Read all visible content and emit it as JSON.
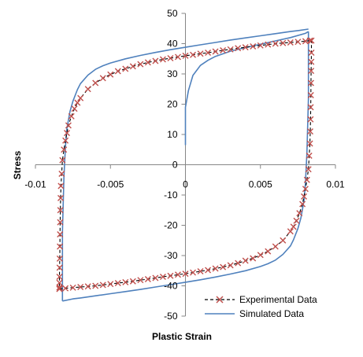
{
  "chart_data": {
    "type": "scatter",
    "title": "",
    "xlabel": "Plastic Strain",
    "ylabel": "Stress",
    "xlim": [
      -0.01,
      0.01
    ],
    "ylim": [
      -50,
      50
    ],
    "x_ticks": [
      -0.01,
      -0.005,
      0,
      0.005,
      0.01
    ],
    "x_tick_labels": [
      "-0.01",
      "-0.005",
      "0",
      "0.005",
      "0.01"
    ],
    "y_ticks": [
      -50,
      -40,
      -30,
      -20,
      -10,
      0,
      10,
      20,
      30,
      40,
      50
    ],
    "y_tick_labels": [
      "-50",
      "-40",
      "-30",
      "-20",
      "-10",
      "0",
      "10",
      "20",
      "30",
      "40",
      "50"
    ],
    "grid": false,
    "legend_position": "bottom-right",
    "series": [
      {
        "name": "Experimental Data",
        "style": "dashed-line-x-markers",
        "color": "#000000",
        "marker_color": "#c0504d",
        "loops": [
          {
            "x": [
              0.0083,
              0.008,
              0.0075,
              0.007,
              0.0065,
              0.006,
              0.0055,
              0.005,
              0.0045,
              0.004,
              0.0035,
              0.003,
              0.0025,
              0.002,
              0.0015,
              0.001,
              0.0005,
              0.0,
              -0.0005,
              -0.001,
              -0.0015,
              -0.002,
              -0.0025,
              -0.003,
              -0.0035,
              -0.004,
              -0.0045,
              -0.005,
              -0.0055,
              -0.006,
              -0.0065,
              -0.007,
              -0.0072,
              -0.0074,
              -0.0076,
              -0.0078,
              -0.0079,
              -0.008,
              -0.0081,
              -0.0082,
              -0.00825,
              -0.0083,
              -0.00832,
              -0.00834,
              -0.00835,
              -0.00836,
              -0.00837,
              -0.00838,
              -0.00839,
              -0.0084,
              -0.0084,
              -0.0084,
              -0.0084
            ],
            "y": [
              41,
              40.8,
              40.6,
              40.4,
              40.2,
              40,
              39.7,
              39.4,
              39.1,
              38.8,
              38.5,
              38.1,
              37.8,
              37.4,
              37,
              36.7,
              36.3,
              36,
              35.6,
              35.2,
              34.8,
              34.3,
              33.8,
              33.2,
              32.5,
              31.7,
              30.9,
              29.8,
              28.6,
              27,
              25,
              22,
              20.5,
              18.5,
              16,
              13,
              10.5,
              8,
              5,
              1.5,
              -3,
              -7,
              -11,
              -15,
              -19,
              -23,
              -27,
              -31,
              -34,
              -37,
              -39,
              -40.5,
              -41
            ]
          },
          {
            "x": [
              -0.0084,
              -0.008,
              -0.0075,
              -0.007,
              -0.0065,
              -0.006,
              -0.0055,
              -0.005,
              -0.0045,
              -0.004,
              -0.0035,
              -0.003,
              -0.0025,
              -0.002,
              -0.0015,
              -0.001,
              -0.0005,
              0.0,
              0.0005,
              0.001,
              0.0015,
              0.002,
              0.0025,
              0.003,
              0.0035,
              0.004,
              0.0045,
              0.005,
              0.0055,
              0.006,
              0.0065,
              0.007,
              0.0072,
              0.0074,
              0.0076,
              0.0078,
              0.0079,
              0.008,
              0.0081,
              0.0082,
              0.00825,
              0.0083,
              0.00832,
              0.00834,
              0.00835,
              0.00836,
              0.00837,
              0.00838,
              0.00839,
              0.0084,
              0.0084
            ],
            "y": [
              -41,
              -40.8,
              -40.6,
              -40.4,
              -40.2,
              -40,
              -39.7,
              -39.4,
              -39.1,
              -38.8,
              -38.5,
              -38.1,
              -37.8,
              -37.4,
              -37,
              -36.7,
              -36.3,
              -36,
              -35.6,
              -35.2,
              -34.8,
              -34.3,
              -33.8,
              -33.2,
              -32.5,
              -31.7,
              -30.9,
              -29.8,
              -28.6,
              -27,
              -25,
              -22,
              -20.5,
              -18.5,
              -16,
              -13,
              -10.5,
              -8,
              -5,
              -1.5,
              3,
              7,
              11,
              15,
              19,
              23,
              27,
              31,
              34,
              37,
              41
            ]
          }
        ]
      },
      {
        "name": "Simulated Data",
        "style": "solid-line",
        "color": "#4f81bd",
        "segments": [
          {
            "x": [
              0.0,
              0.0,
              0.0002,
              0.0005,
              0.001,
              0.0015,
              0.002,
              0.003,
              0.004,
              0.005,
              0.006,
              0.007,
              0.008,
              0.0082
            ],
            "y": [
              6.5,
              19,
              24.5,
              29.5,
              32.8,
              34.5,
              35.8,
              37.5,
              38.7,
              39.8,
              40.9,
              42,
              43.4,
              44
            ]
          },
          {
            "x": [
              0.0082,
              0.0082,
              0.0081,
              0.008,
              0.0079,
              0.0077,
              0.0075,
              0.0072,
              0.007,
              0.0065,
              0.006,
              0.0055,
              0.005,
              0.004,
              0.003,
              0.002,
              0.001,
              0.0,
              -0.001,
              -0.002,
              -0.003,
              -0.004,
              -0.005,
              -0.006,
              -0.007,
              -0.0075,
              -0.0082
            ],
            "y": [
              44,
              22,
              4,
              -6,
              -12,
              -17.5,
              -21,
              -24.8,
              -26.8,
              -29.6,
              -31.5,
              -32.7,
              -33.6,
              -35,
              -36.1,
              -37.1,
              -38,
              -38.8,
              -39.6,
              -40.4,
              -41.2,
              -41.9,
              -42.6,
              -43.3,
              -44,
              -44.3,
              -45
            ]
          },
          {
            "x": [
              -0.0082,
              -0.0082,
              -0.0081,
              -0.008,
              -0.0079,
              -0.0077,
              -0.0075,
              -0.0072,
              -0.007,
              -0.0065,
              -0.006,
              -0.0055,
              -0.005,
              -0.004,
              -0.003,
              -0.002,
              -0.001,
              0.0,
              0.001,
              0.002,
              0.003,
              0.004,
              0.005,
              0.006,
              0.007,
              0.0075,
              0.0082
            ],
            "y": [
              -45,
              -22,
              -4,
              6,
              12,
              17.5,
              21,
              24.8,
              26.8,
              29.6,
              31.5,
              32.7,
              33.6,
              35,
              36.1,
              37.1,
              38,
              38.8,
              39.6,
              40.4,
              41.2,
              41.9,
              42.6,
              43.3,
              44,
              44.3,
              44.8
            ]
          }
        ]
      }
    ]
  }
}
